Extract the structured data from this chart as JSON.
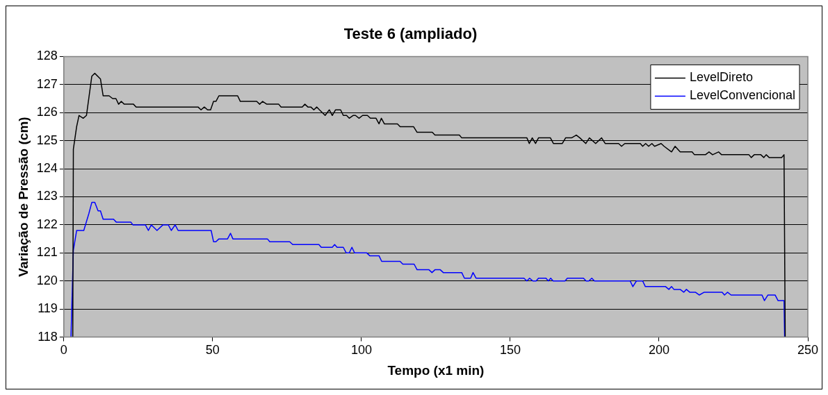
{
  "chart_data": {
    "type": "line",
    "title": "Teste 6 (ampliado)",
    "xlabel": "Tempo (x1 min)",
    "ylabel": "Variação de Pressão (cm)",
    "xlim": [
      0,
      250
    ],
    "xticks": [
      0,
      50,
      100,
      150,
      200,
      250
    ],
    "ylim": [
      118,
      128
    ],
    "yticks": [
      118,
      119,
      120,
      121,
      122,
      123,
      124,
      125,
      126,
      127,
      128
    ],
    "grid": "y",
    "legend": "top right",
    "marker": "none",
    "line_style": "solid",
    "series": [
      {
        "name": "LevelDireto",
        "color": "#000000",
        "x": [
          3.0,
          3.2,
          4.3,
          5.1,
          6.5,
          7.6,
          9.4,
          10.4,
          12.3,
          13.2,
          15.2,
          16.4,
          17.5,
          18.4,
          19.3,
          20.3,
          23.4,
          24.3,
          45.1,
          46.1,
          47.2,
          48.3,
          49.3,
          50.3,
          51.1,
          52.1,
          58.4,
          59.3,
          64.8,
          65.8,
          66.8,
          68.2,
          72.2,
          73.0,
          80.1,
          81.0,
          82.0,
          83.0,
          84.0,
          85.0,
          85.9,
          87.8,
          89.2,
          90.2,
          91.3,
          93.0,
          93.9,
          95.0,
          95.9,
          97.2,
          98.0,
          99.2,
          100.4,
          102.0,
          103.0,
          104.9,
          105.9,
          106.7,
          107.7,
          112.1,
          113.0,
          117.5,
          118.7,
          123.8,
          124.7,
          132.9,
          133.7,
          155.6,
          156.4,
          157.4,
          158.5,
          159.5,
          163.5,
          164.5,
          167.5,
          168.6,
          170.6,
          172.2,
          173.4,
          175.4,
          176.6,
          178.7,
          180.7,
          181.9,
          186.4,
          187.4,
          188.5,
          193.7,
          194.5,
          195.5,
          196.5,
          197.6,
          198.5,
          200.7,
          201.7,
          204.2,
          205.4,
          207.1,
          211.1,
          211.9,
          215.6,
          216.8,
          218.0,
          220.0,
          221.0,
          230.2,
          231.0,
          232.0,
          234.2,
          235.2,
          236.0,
          237.0,
          241.2,
          242.0,
          242.4
        ],
        "values": [
          118,
          124.7,
          125.5,
          125.9,
          125.8,
          125.9,
          127.3,
          127.4,
          127.2,
          126.6,
          126.6,
          126.5,
          126.5,
          126.3,
          126.4,
          126.3,
          126.3,
          126.2,
          126.2,
          126.1,
          126.2,
          126.1,
          126.1,
          126.4,
          126.4,
          126.6,
          126.6,
          126.4,
          126.4,
          126.3,
          126.4,
          126.3,
          126.3,
          126.2,
          126.2,
          126.3,
          126.2,
          126.2,
          126.1,
          126.2,
          126.1,
          125.9,
          126.1,
          125.9,
          126.1,
          126.1,
          125.9,
          125.9,
          125.8,
          125.9,
          125.9,
          125.8,
          125.9,
          125.9,
          125.8,
          125.8,
          125.6,
          125.8,
          125.6,
          125.6,
          125.5,
          125.5,
          125.3,
          125.3,
          125.2,
          125.2,
          125.1,
          125.1,
          124.9,
          125.1,
          124.9,
          125.1,
          125.1,
          124.9,
          124.9,
          125.1,
          125.1,
          125.2,
          125.1,
          124.9,
          125.1,
          124.9,
          125.1,
          124.9,
          124.9,
          124.8,
          124.9,
          124.9,
          124.8,
          124.9,
          124.8,
          124.9,
          124.8,
          124.9,
          124.8,
          124.6,
          124.8,
          124.6,
          124.6,
          124.5,
          124.5,
          124.6,
          124.5,
          124.6,
          124.5,
          124.5,
          124.4,
          124.5,
          124.5,
          124.4,
          124.5,
          124.4,
          124.4,
          124.5,
          118
        ]
      },
      {
        "name": "LevelConvencional",
        "color": "#0000ff",
        "x": [
          2.4,
          3.2,
          4.3,
          6.7,
          8.4,
          9.4,
          10.4,
          11.5,
          12.3,
          13.2,
          16.7,
          17.6,
          22.5,
          23.2,
          27.4,
          28.4,
          29.4,
          31.3,
          33.3,
          35.1,
          36.1,
          37.4,
          38.4,
          49.5,
          50.3,
          51.1,
          52.1,
          55.0,
          56.0,
          56.8,
          68.4,
          69.2,
          75.9,
          76.9,
          85.7,
          86.5,
          90.2,
          91.0,
          91.8,
          93.9,
          94.9,
          95.9,
          96.8,
          97.7,
          101.8,
          102.8,
          105.9,
          106.8,
          113.0,
          113.9,
          117.7,
          118.7,
          122.7,
          123.7,
          124.7,
          126.5,
          127.5,
          133.7,
          134.6,
          136.7,
          137.5,
          138.5,
          154.6,
          155.6,
          156.5,
          157.6,
          158.7,
          159.5,
          162.0,
          162.8,
          163.6,
          164.4,
          168.4,
          169.2,
          174.6,
          175.5,
          176.4,
          177.4,
          178.3,
          190.3,
          191.2,
          192.4,
          194.5,
          195.4,
          202.2,
          203.3,
          204.2,
          205.0,
          207.1,
          208.3,
          209.2,
          210.3,
          212.2,
          213.5,
          215.2,
          221.2,
          222.0,
          223.0,
          224.2,
          234.6,
          235.4,
          236.6,
          239.0,
          240.0,
          242.0,
          242.2
        ],
        "values": [
          118,
          121.1,
          121.8,
          121.8,
          122.4,
          122.8,
          122.8,
          122.5,
          122.5,
          122.2,
          122.2,
          122.1,
          122.1,
          122.0,
          122.0,
          121.8,
          122.0,
          121.8,
          122.0,
          122.0,
          121.8,
          122.0,
          121.8,
          121.8,
          121.4,
          121.4,
          121.5,
          121.5,
          121.7,
          121.5,
          121.5,
          121.4,
          121.4,
          121.3,
          121.3,
          121.2,
          121.2,
          121.3,
          121.2,
          121.2,
          121.0,
          121.0,
          121.2,
          121.0,
          121.0,
          120.9,
          120.9,
          120.7,
          120.7,
          120.6,
          120.6,
          120.4,
          120.4,
          120.3,
          120.4,
          120.4,
          120.3,
          120.3,
          120.1,
          120.1,
          120.3,
          120.1,
          120.1,
          120.0,
          120.1,
          120.0,
          120.0,
          120.1,
          120.1,
          120.0,
          120.1,
          120.0,
          120.0,
          120.1,
          120.1,
          120.0,
          120.0,
          120.1,
          120.0,
          120.0,
          119.8,
          120.0,
          120.0,
          119.8,
          119.8,
          119.7,
          119.8,
          119.7,
          119.7,
          119.6,
          119.7,
          119.6,
          119.6,
          119.5,
          119.6,
          119.6,
          119.5,
          119.6,
          119.5,
          119.5,
          119.3,
          119.5,
          119.5,
          119.3,
          119.3,
          118
        ]
      }
    ]
  }
}
